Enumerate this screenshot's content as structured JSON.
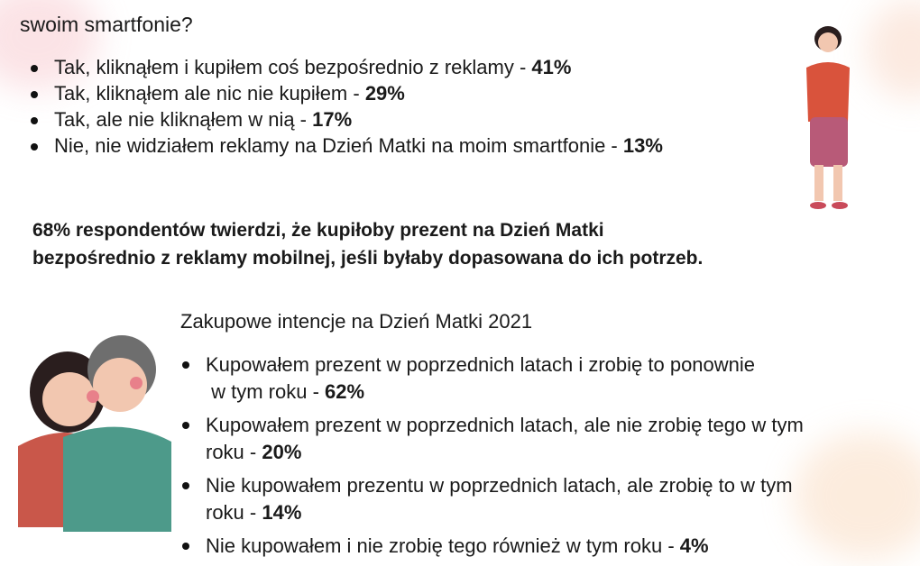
{
  "question_tail": "swoim smartfonie?",
  "survey1": [
    {
      "text": "Tak, kliknąłem i kupiłem coś bezpośrednio z reklamy - ",
      "value": "41%"
    },
    {
      "text": "Tak, kliknąłem ale nic nie kupiłem - ",
      "value": "29%"
    },
    {
      "text": "Tak, ale nie kliknąłem w nią - ",
      "value": "17%"
    },
    {
      "text": "Nie, nie widziałem reklamy na Dzień Matki na moim smartfonie - ",
      "value": "13%"
    }
  ],
  "highlight": [
    "68% respondentów twierdzi, że kupiłoby prezent na Dzień Matki",
    "bezpośrednio z reklamy mobilnej, jeśli byłaby dopasowana do ich potrzeb."
  ],
  "section2_title": "Zakupowe intencje na Dzień Matki 2021",
  "survey2": [
    {
      "line1": "Kupowałem prezent w poprzednich latach i zrobię to ponownie",
      "line2": " w tym roku - ",
      "value": "62%"
    },
    {
      "line1": "Kupowałem prezent w poprzednich latach, ale nie zrobię tego w tym",
      "line2": "roku - ",
      "value": "20%"
    },
    {
      "line1": "Nie kupowałem prezentu w poprzednich latach, ale zrobię to w tym",
      "line2": "roku - ",
      "value": "14%"
    },
    {
      "line1": "Nie kupowałem i nie zrobię tego również w tym roku - ",
      "line2": "",
      "value": "4%"
    }
  ]
}
